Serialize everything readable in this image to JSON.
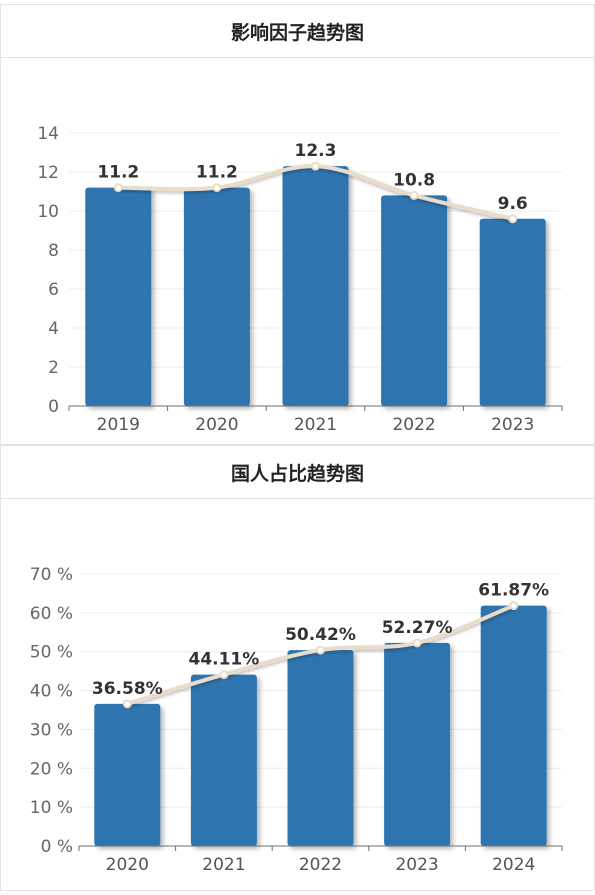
{
  "chart_data": [
    {
      "type": "bar",
      "title": "影响因子趋势图",
      "categories": [
        "2019",
        "2020",
        "2021",
        "2022",
        "2023"
      ],
      "series": [
        {
          "values": [
            11.2,
            11.2,
            12.3,
            10.8,
            9.6
          ]
        }
      ],
      "data_labels": [
        "11.2",
        "11.2",
        "12.3",
        "10.8",
        "9.6"
      ],
      "overlay": "smoothed-trend-line",
      "ylim": [
        0,
        14
      ],
      "yticks": [
        0,
        2,
        4,
        6,
        8,
        10,
        12,
        14
      ],
      "ytick_labels": [
        "0",
        "2",
        "4",
        "6",
        "8",
        "10",
        "12",
        "14"
      ],
      "bar_color": "#2e74b0",
      "line_color": "#e9dcc9",
      "grid": true
    },
    {
      "type": "bar",
      "title": "国人占比趋势图",
      "categories": [
        "2020",
        "2021",
        "2022",
        "2023",
        "2024"
      ],
      "series": [
        {
          "values": [
            36.58,
            44.11,
            50.42,
            52.27,
            61.87
          ]
        }
      ],
      "data_labels": [
        "36.58%",
        "44.11%",
        "50.42%",
        "52.27%",
        "61.87%"
      ],
      "overlay": "smoothed-trend-line",
      "ylim": [
        0,
        70
      ],
      "yticks": [
        0,
        10,
        20,
        30,
        40,
        50,
        60,
        70
      ],
      "ytick_labels": [
        "0 %",
        "10 %",
        "20 %",
        "30 %",
        "40 %",
        "50 %",
        "60 %",
        "70 %"
      ],
      "bar_color": "#2e74b0",
      "line_color": "#e9dcc9",
      "grid": true
    }
  ]
}
